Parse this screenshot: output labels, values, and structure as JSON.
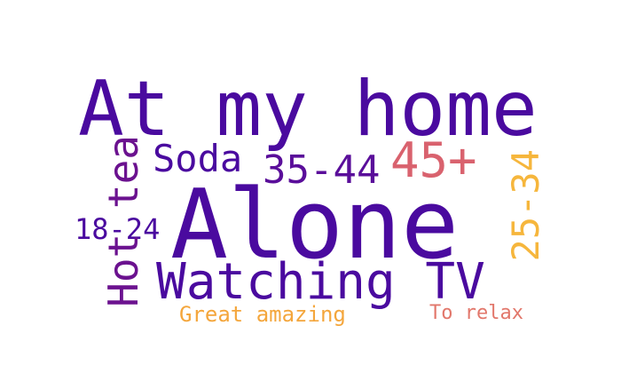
{
  "words": [
    {
      "text": "At my home",
      "color": "#4a0a9f"
    },
    {
      "text": "Alone",
      "color": "#4a0a9f"
    },
    {
      "text": "Soda",
      "color": "#4a0a9f"
    },
    {
      "text": "35-44",
      "color": "#5a0e9a"
    },
    {
      "text": "45+",
      "color": "#d9626e"
    },
    {
      "text": "18-24",
      "color": "#4a0a9f"
    },
    {
      "text": "Watching TV",
      "color": "#4a0a9f"
    },
    {
      "text": "Great amazing",
      "color": "#f4a63c"
    },
    {
      "text": "To relax",
      "color": "#e2776b"
    },
    {
      "text": "Hot tea",
      "color": "#6b128f"
    },
    {
      "text": "25-34",
      "color": "#f6b63c"
    }
  ]
}
